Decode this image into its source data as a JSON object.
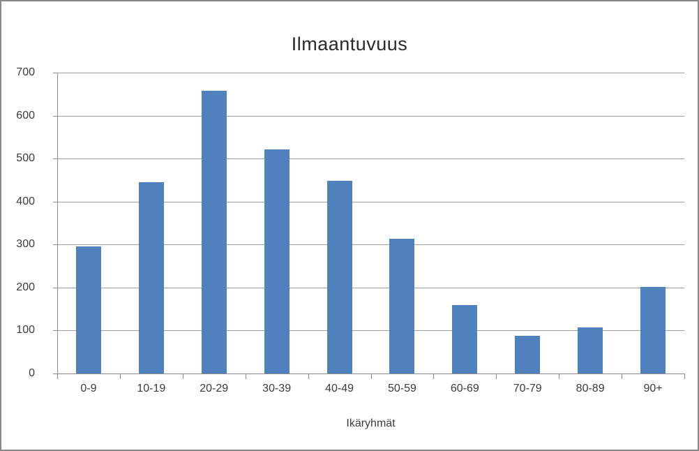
{
  "chart_data": {
    "type": "bar",
    "title": "Ilmaantuvuus",
    "xlabel": "Ikäryhmät",
    "ylabel": "",
    "categories": [
      "0-9",
      "10-19",
      "20-29",
      "30-39",
      "40-49",
      "50-59",
      "60-69",
      "70-79",
      "80-89",
      "90+"
    ],
    "values": [
      295,
      445,
      658,
      522,
      449,
      313,
      160,
      88,
      108,
      202
    ],
    "ylim": [
      0,
      700
    ],
    "ytick_step": 100,
    "ytick_labels": [
      "0",
      "100",
      "200",
      "300",
      "400",
      "500",
      "600",
      "700"
    ],
    "grid": true,
    "legend_position": "none",
    "bar_color": "#4E81BD",
    "gridline_color": "#9c9c9c",
    "axis_color": "#8c8c8c",
    "text_color": "#3b3b3b",
    "frame_border_color": "#898989"
  }
}
